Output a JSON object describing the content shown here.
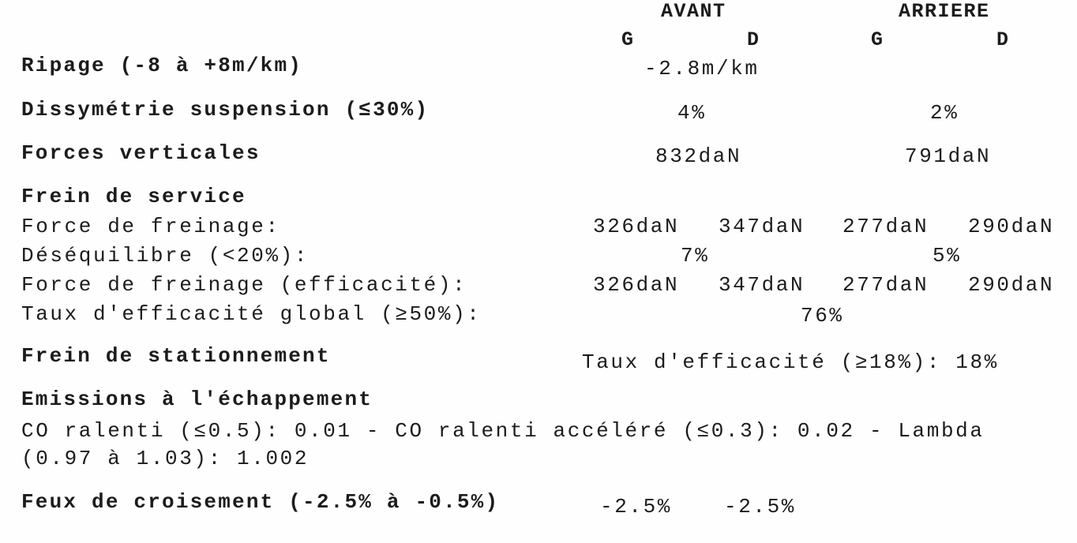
{
  "header": {
    "avant": "AVANT",
    "arriere": "ARRIERE",
    "g": "G",
    "d": "D"
  },
  "ripage": {
    "label": "Ripage (-8 à +8m/km)",
    "value": "-2.8m/km"
  },
  "dissymetrie": {
    "label": "Dissymétrie suspension (≤30%)",
    "avant": "4%",
    "arriere": "2%"
  },
  "forces_verticales": {
    "label": "Forces verticales",
    "avant": "832daN",
    "arriere": "791daN"
  },
  "frein_service": {
    "title": "Frein de service",
    "force_label": "Force de freinage:",
    "force": [
      "326daN",
      "347daN",
      "277daN",
      "290daN"
    ],
    "deseq_label": "Déséquilibre (<20%):",
    "deseq_avant": "7%",
    "deseq_arriere": "5%",
    "force_eff_label": "Force de freinage (efficacité):",
    "force_eff": [
      "326daN",
      "347daN",
      "277daN",
      "290daN"
    ],
    "taux_label": "Taux d'efficacité global (≥50%):",
    "taux": "76%"
  },
  "frein_stationnement": {
    "title": "Frein de stationnement",
    "value": "Taux d'efficacité (≥18%): 18%"
  },
  "emissions": {
    "title": "Emissions à l'échappement",
    "line1": "CO ralenti (≤0.5): 0.01 - CO ralenti accéléré (≤0.3): 0.02 - Lambda",
    "line2": "(0.97 à 1.03): 1.002"
  },
  "feux": {
    "label": "Feux de croisement (-2.5% à -0.5%)",
    "g": "-2.5%",
    "d": "-2.5%"
  }
}
